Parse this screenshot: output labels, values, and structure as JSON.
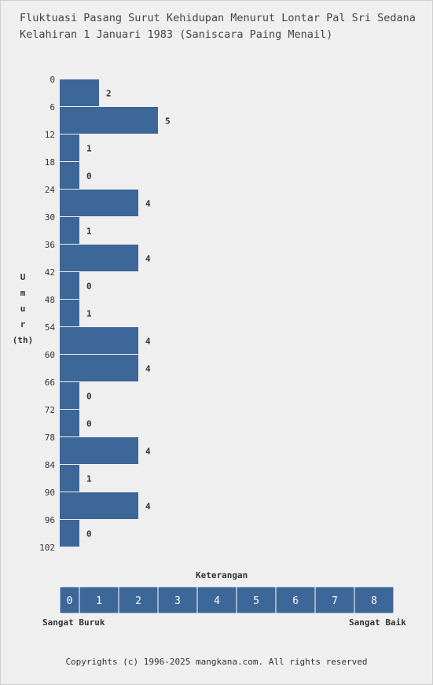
{
  "title_line1": "Fluktuasi Pasang Surut Kehidupan Menurut Lontar Pal Sri Sedana",
  "title_line2": "Kelahiran 1 Januari 1983 (Saniscara Paing Menail)",
  "ylabel_chars": [
    "U",
    "m",
    "u",
    "r"
  ],
  "ylabel_unit": "(th)",
  "legend": {
    "title": "Keterangan",
    "scale": [
      "0",
      "1",
      "2",
      "3",
      "4",
      "5",
      "6",
      "7",
      "8"
    ],
    "left_label": "Sangat Buruk",
    "right_label": "Sangat Baik"
  },
  "footer": "Copyrights (c) 1996-2025 mangkana.com. All rights reserved",
  "colors": {
    "bar": "#3d6699",
    "background": "#efefef",
    "grid_line": "#ffffff"
  },
  "chart_data": {
    "type": "bar",
    "orientation": "horizontal",
    "ylabel": "Umur (th)",
    "ytick_labels": [
      "0",
      "6",
      "12",
      "18",
      "24",
      "30",
      "36",
      "42",
      "48",
      "54",
      "60",
      "66",
      "72",
      "78",
      "84",
      "90",
      "96",
      "102"
    ],
    "categories": [
      "0",
      "6",
      "12",
      "18",
      "24",
      "30",
      "36",
      "42",
      "48",
      "54",
      "60",
      "66",
      "72",
      "78",
      "84",
      "90",
      "96"
    ],
    "values": [
      2,
      5,
      1,
      0,
      4,
      1,
      4,
      0,
      1,
      4,
      4,
      0,
      0,
      4,
      1,
      4,
      0
    ],
    "xlim": [
      0,
      8
    ]
  }
}
